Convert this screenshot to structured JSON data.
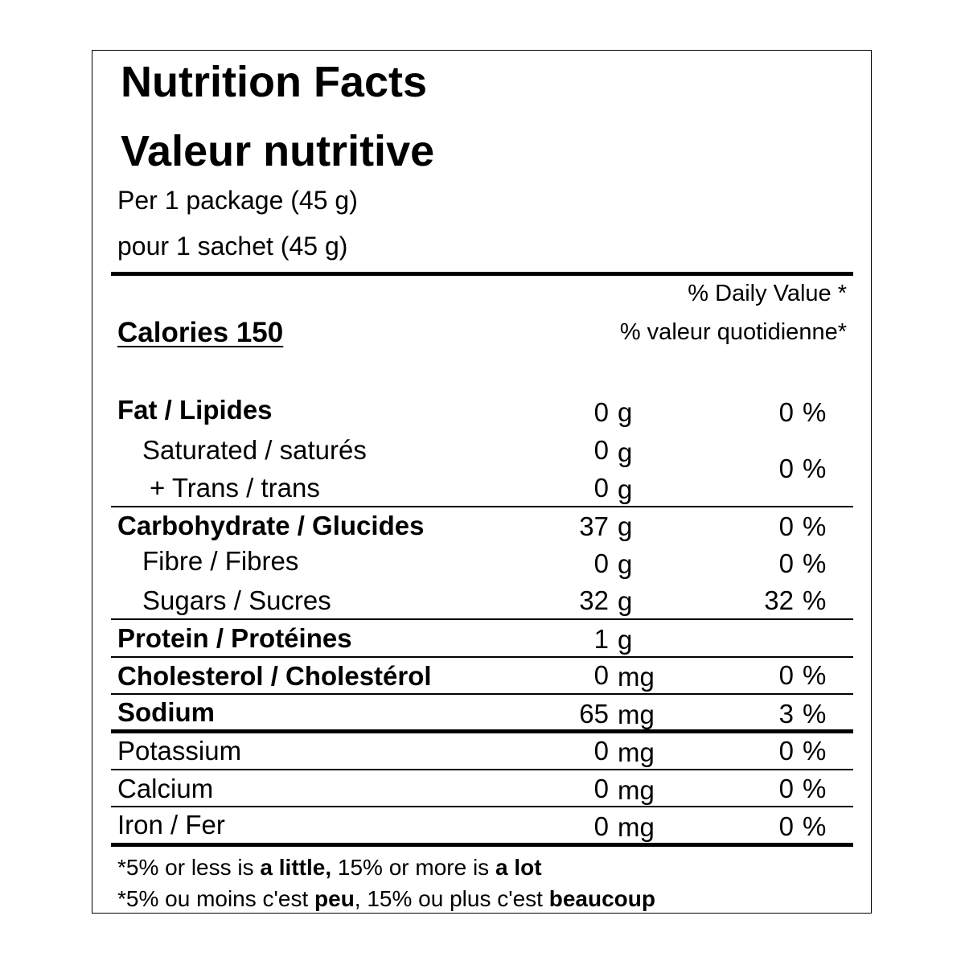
{
  "title_en": "Nutrition Facts",
  "title_fr": "Valeur nutritive",
  "serving_en": "Per 1 package (45 g)",
  "serving_fr": "pour 1 sachet (45 g)",
  "daily_value_en": "% Daily Value *",
  "daily_value_fr": "% valeur quotidienne*",
  "calories_label": "Calories 150",
  "rows": [
    {
      "label": "Fat / Lipides",
      "amount": "0",
      "unit": "g",
      "dv": "0"
    },
    {
      "label": "Saturated / saturés",
      "amount": "0",
      "unit": "g"
    },
    {
      "label": "+  Trans / trans",
      "amount": "0",
      "unit": "g"
    },
    {
      "label": "Carbohydrate / Glucides",
      "amount": "37",
      "unit": "g",
      "dv": "0"
    },
    {
      "label": "Fibre / Fibres",
      "amount": "0",
      "unit": "g",
      "dv": "0"
    },
    {
      "label": "Sugars / Sucres",
      "amount": "32",
      "unit": "g",
      "dv": "32"
    },
    {
      "label": "Protein / Protéines",
      "amount": "1",
      "unit": "g"
    },
    {
      "label": "Cholesterol / Cholestérol",
      "amount": "0",
      "unit": "mg",
      "dv": "0"
    },
    {
      "label": "Sodium",
      "amount": "65",
      "unit": "mg",
      "dv": "3"
    },
    {
      "label": "Potassium",
      "amount": "0",
      "unit": "mg",
      "dv": "0"
    },
    {
      "label": "Calcium",
      "amount": "0",
      "unit": "mg",
      "dv": "0"
    },
    {
      "label": "Iron / Fer",
      "amount": "0",
      "unit": "mg",
      "dv": "0"
    }
  ],
  "sat_trans_dv": "0",
  "percent_sign": "%",
  "footnote_en": {
    "a": "*5% or less is ",
    "b": "a little,",
    "c": " 15% or more is ",
    "d": "a lot"
  },
  "footnote_fr": {
    "a": "*5% ou moins c'est ",
    "b": "peu",
    "c": ", 15% ou plus c'est ",
    "d": "beaucoup"
  }
}
